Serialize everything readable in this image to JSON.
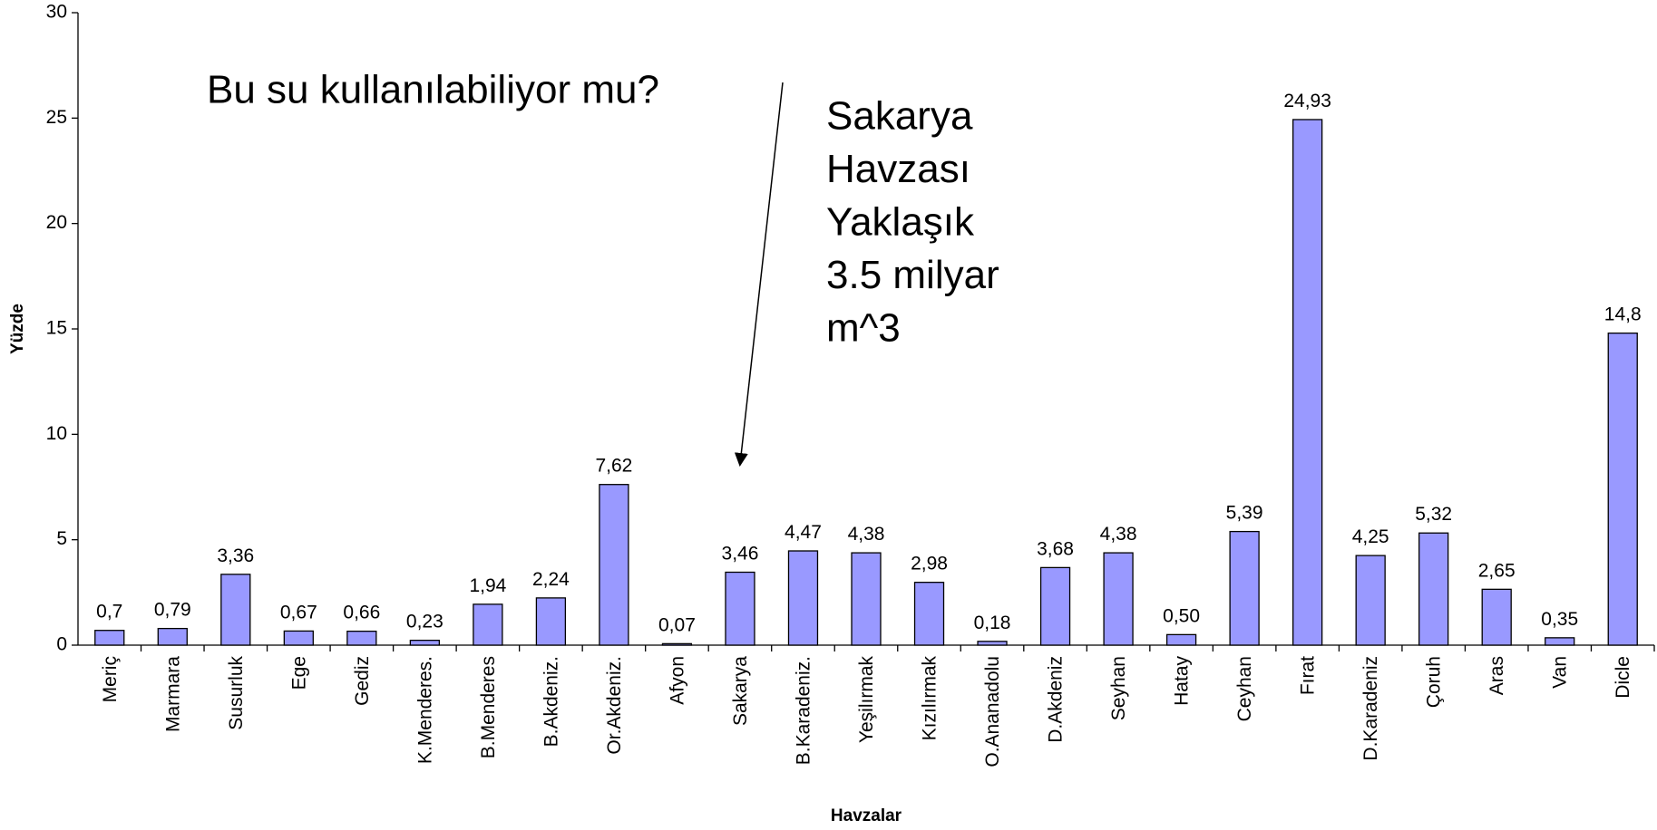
{
  "chart_data": {
    "type": "bar",
    "categories": [
      "Meriç",
      "Marmara",
      "Susurluk",
      "Ege",
      "Gediz",
      "K.Menderes.",
      "B.Menderes",
      "B.Akdeniz.",
      "Or.Akdeniz.",
      "Afyon",
      "Sakarya",
      "B.Karadeniz.",
      "Yeşilırmak",
      "Kızılırmak",
      "O.Ananadolu",
      "D.Akdeniz",
      "Seyhan",
      "Hatay",
      "Ceyhan",
      "Fırat",
      "D.Karadeniz",
      "Çoruh",
      "Aras",
      "Van",
      "Dicle"
    ],
    "values": [
      0.7,
      0.79,
      3.36,
      0.67,
      0.66,
      0.23,
      1.94,
      2.24,
      7.62,
      0.07,
      3.46,
      4.47,
      4.38,
      2.98,
      0.18,
      3.68,
      4.38,
      0.5,
      5.39,
      24.93,
      4.25,
      5.32,
      2.65,
      0.35,
      14.8
    ],
    "value_labels": [
      "0,7",
      "0,79",
      "3,36",
      "0,67",
      "0,66",
      "0,23",
      "1,94",
      "2,24",
      "7,62",
      "0,07",
      "3,46",
      "4,47",
      "4,38",
      "2,98",
      "0,18",
      "3,68",
      "4,38",
      "0,50",
      "5,39",
      "24,93",
      "4,25",
      "5,32",
      "2,65",
      "0,35",
      "14,8"
    ],
    "color": "#9999ff",
    "ylim": [
      0,
      30
    ],
    "yticks": [
      0,
      5,
      10,
      15,
      20,
      25,
      30
    ],
    "y_label": "Yüzde",
    "x_label": "Havzalar",
    "annotations": [
      "Bu su kullanılabiliyor mu?",
      [
        "Sakarya",
        "Havzası",
        "Yaklaşık",
        "3.5 milyar",
        "m^3"
      ]
    ]
  }
}
